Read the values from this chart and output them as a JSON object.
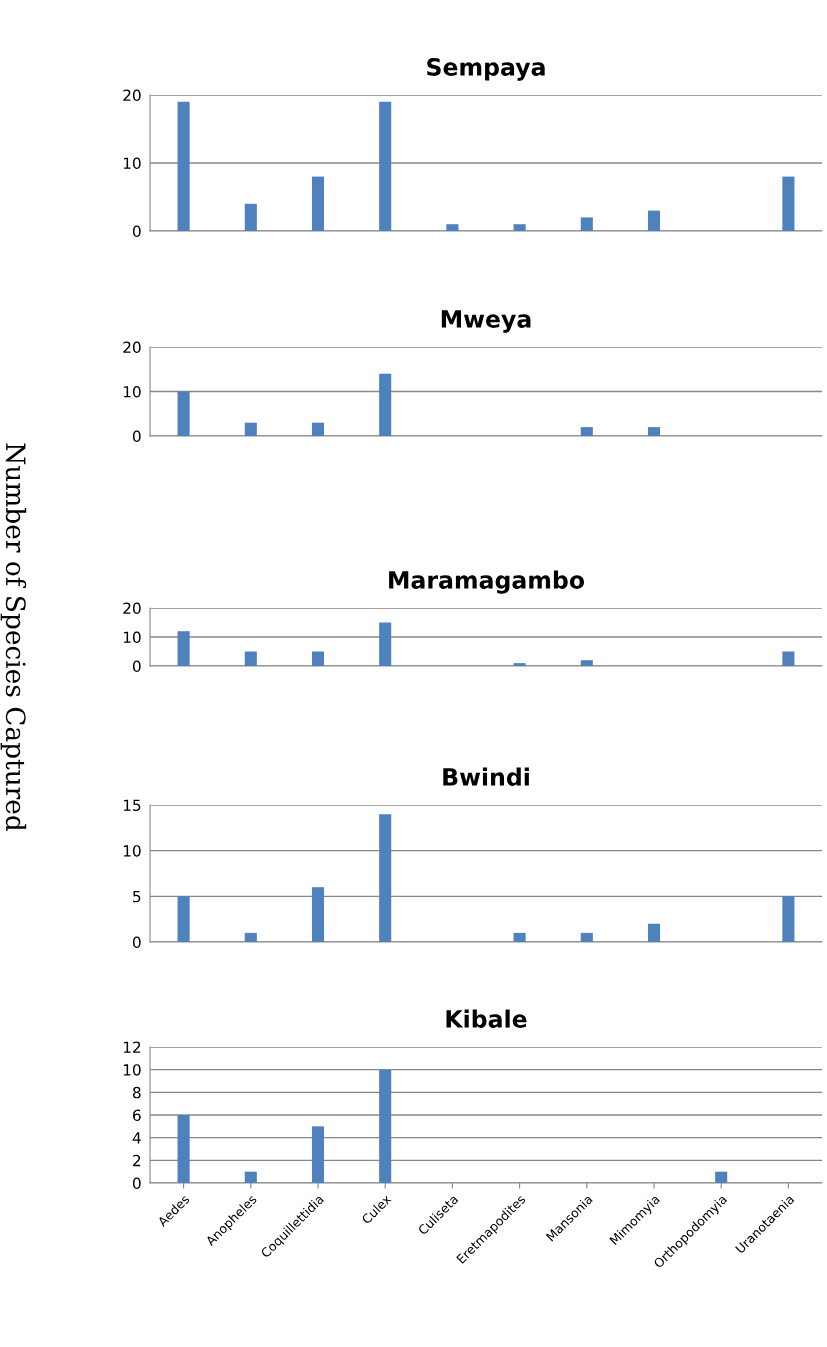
{
  "chart_data": [
    {
      "type": "bar",
      "title": "Sempaya",
      "categories": [
        null,
        null,
        null,
        null,
        null,
        null,
        null,
        null,
        null,
        null
      ],
      "series": [
        {
          "color": "#4f81bd",
          "values": [
            19,
            4,
            8,
            19,
            1,
            1,
            2,
            3,
            0,
            8
          ]
        }
      ],
      "ylim": [
        0,
        20
      ],
      "yticks": [
        0,
        10,
        20
      ],
      "grid": "y",
      "tick_labels": "y"
    },
    {
      "type": "bar",
      "title": "Mweya",
      "categories": [
        null,
        null,
        null,
        null,
        null,
        null,
        null,
        null,
        null,
        null
      ],
      "series": [
        {
          "color": "#4f81bd",
          "values": [
            10,
            3,
            3,
            14,
            0,
            0,
            2,
            2,
            0,
            0
          ]
        }
      ],
      "ylim": [
        0,
        20
      ],
      "yticks": [
        0,
        10,
        20
      ],
      "grid": "y",
      "tick_labels": "y"
    },
    {
      "type": "bar",
      "title": "Maramagambo",
      "ylabel": "Number of Species Captured",
      "categories": [
        null,
        null,
        null,
        null,
        null,
        null,
        null,
        null,
        null,
        null
      ],
      "series": [
        {
          "color": "#4f81bd",
          "values": [
            12,
            5,
            5,
            15,
            0,
            1,
            2,
            0,
            0,
            5
          ]
        }
      ],
      "ylim": [
        0,
        20
      ],
      "yticks": [
        0,
        10,
        20
      ],
      "grid": "y",
      "tick_labels": "y"
    },
    {
      "type": "bar",
      "title": "Bwindi",
      "categories": [
        null,
        null,
        null,
        null,
        null,
        null,
        null,
        null,
        null,
        null
      ],
      "series": [
        {
          "color": "#4f81bd",
          "values": [
            5,
            1,
            6,
            14,
            0,
            1,
            1,
            2,
            0,
            5
          ]
        }
      ],
      "ylim": [
        0,
        15
      ],
      "yticks": [
        0,
        5,
        10,
        15
      ],
      "grid": "y",
      "tick_labels": "y"
    },
    {
      "type": "bar",
      "title": "Kibale",
      "categories": [
        "Aedes",
        "Anopheles",
        "Coquillettidia",
        "Culex",
        "Culiseta",
        "Eretmapodites",
        "Mansonia",
        "Mimomyia",
        "Orthopodomyia",
        "Uranotaenia"
      ],
      "series": [
        {
          "color": "#4f81bd",
          "values": [
            6,
            1,
            5,
            10,
            0,
            0,
            0,
            0,
            1,
            0
          ]
        }
      ],
      "ylim": [
        0,
        12
      ],
      "yticks": [
        0,
        2,
        4,
        6,
        8,
        10,
        12
      ],
      "grid": "y"
    }
  ]
}
